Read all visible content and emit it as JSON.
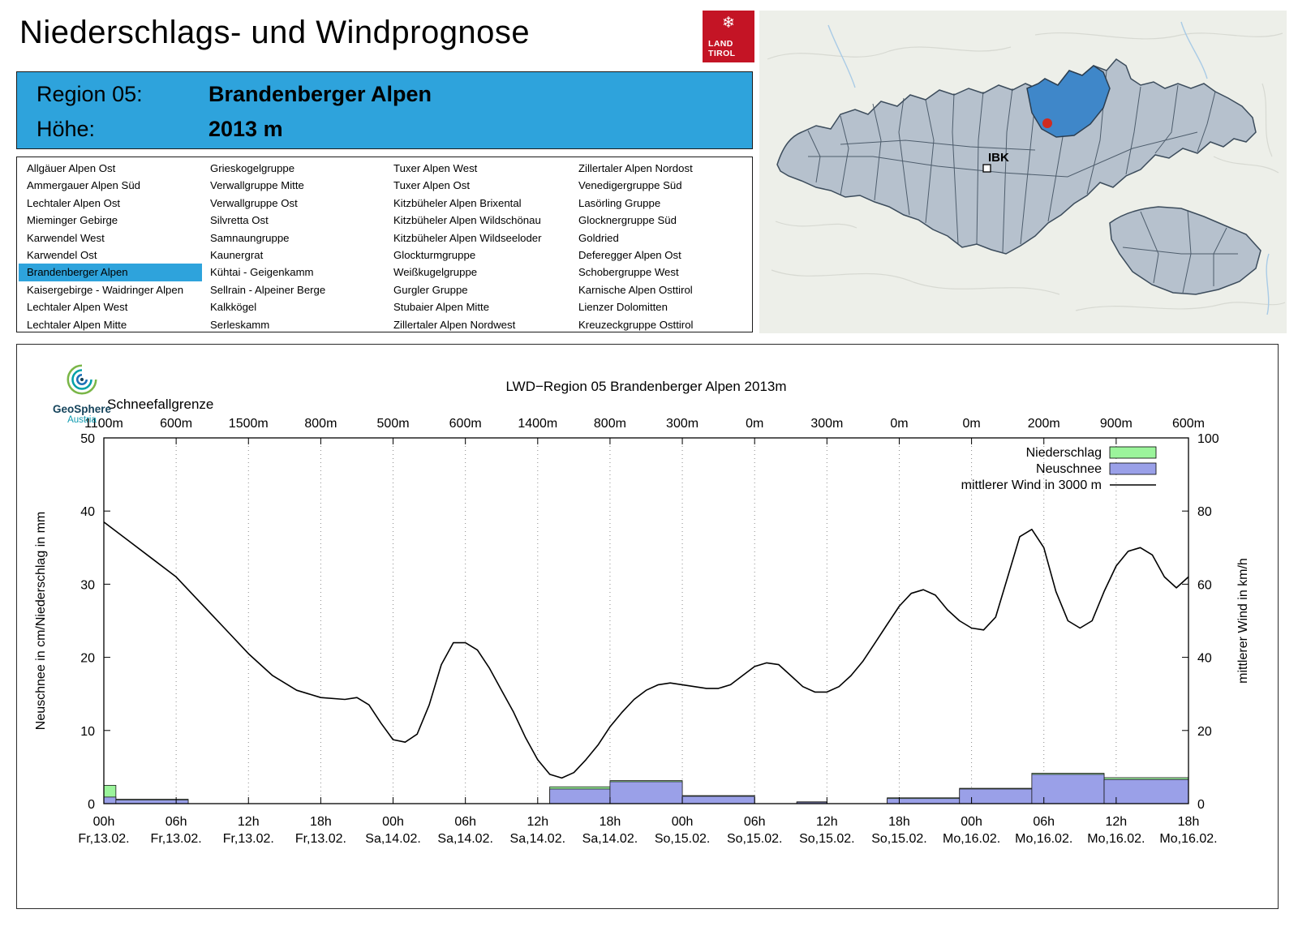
{
  "page": {
    "title": "Niederschlags- und Windprognose"
  },
  "logo": {
    "bg": "#c41425",
    "snowflake": "❄",
    "line1": "LAND",
    "line2": "TIROL"
  },
  "region_box": {
    "bg": "#2ea3dc",
    "rows": [
      {
        "label": "Region 05:",
        "value": "Brandenberger Alpen"
      },
      {
        "label": "Höhe:",
        "value": "2013 m"
      }
    ]
  },
  "region_list": {
    "highlight": "Brandenberger Alpen",
    "highlight_color": "#2ea3dc",
    "columns": [
      [
        "Allgäuer Alpen Ost",
        "Ammergauer Alpen Süd",
        "Lechtaler Alpen Ost",
        "Mieminger Gebirge",
        "Karwendel West",
        "Karwendel Ost",
        "Brandenberger Alpen",
        "Kaisergebirge - Waidringer Alpen",
        "Lechtaler Alpen West",
        "Lechtaler Alpen Mitte"
      ],
      [
        "Grieskogelgruppe",
        "Verwallgruppe Mitte",
        "Verwallgruppe Ost",
        "Silvretta Ost",
        "Samnaungruppe",
        "Kaunergrat",
        "Kühtai - Geigenkamm",
        "Sellrain - Alpeiner Berge",
        "Kalkkögel",
        "Serleskamm"
      ],
      [
        "Tuxer Alpen West",
        "Tuxer Alpen Ost",
        "Kitzbüheler Alpen Brixental",
        "Kitzbüheler Alpen Wildschönau",
        "Kitzbüheler Alpen Wildseeloder",
        "Glockturmgruppe",
        "Weißkugelgruppe",
        "Gurgler Gruppe",
        "Stubaier Alpen Mitte",
        "Zillertaler Alpen Nordwest"
      ],
      [
        "Zillertaler Alpen Nordost",
        "Venedigergruppe Süd",
        "Lasörling Gruppe",
        "Glocknergruppe Süd",
        "Goldried",
        "Deferegger Alpen Ost",
        "Schobergruppe West",
        "Karnische Alpen Osttirol",
        "Lienzer Dolomitten",
        "Kreuzeckgruppe Osttirol"
      ]
    ]
  },
  "map": {
    "ibk_label": "IBK",
    "highlight_color": "#3f87c9",
    "marker_color": "#cf2b20"
  },
  "geosphere": {
    "name": "GeoSphere",
    "sub": "Austria"
  },
  "chart_data": {
    "type": "line+bar",
    "title": "LWD−Region 05 Brandenberger Alpen 2013m",
    "top_axis_label": "Schneefallgrenze",
    "snowline_labels": [
      "1100m",
      "600m",
      "1500m",
      "800m",
      "500m",
      "600m",
      "1400m",
      "800m",
      "300m",
      "0m",
      "300m",
      "0m",
      "0m",
      "200m",
      "900m",
      "600m"
    ],
    "x_ticks_hours": [
      0,
      6,
      12,
      18,
      24,
      30,
      36,
      42,
      48,
      54,
      60,
      66,
      72,
      78,
      84,
      90
    ],
    "x_tick_times": [
      "00h",
      "06h",
      "12h",
      "18h",
      "00h",
      "06h",
      "12h",
      "18h",
      "00h",
      "06h",
      "12h",
      "18h",
      "00h",
      "06h",
      "12h",
      "18h"
    ],
    "x_tick_dates": [
      "Fr,13.02.",
      "Fr,13.02.",
      "Fr,13.02.",
      "Fr,13.02.",
      "Sa,14.02.",
      "Sa,14.02.",
      "Sa,14.02.",
      "Sa,14.02.",
      "So,15.02.",
      "So,15.02.",
      "So,15.02.",
      "So,15.02.",
      "Mo,16.02.",
      "Mo,16.02.",
      "Mo,16.02.",
      "Mo,16.02."
    ],
    "ylabel_left": "Neuschnee in cm/Niederschlag in mm",
    "ylabel_right": "mittlerer Wind in km/h",
    "ylim_left": [
      0,
      50
    ],
    "ylim_right": [
      0,
      100
    ],
    "yticks_left": [
      0,
      10,
      20,
      30,
      40,
      50
    ],
    "yticks_right": [
      0,
      20,
      40,
      60,
      80,
      100
    ],
    "colors": {
      "niederschlag": "#9bf49b",
      "neuschnee": "#9aa0e8",
      "wind": "#000000"
    },
    "legend": [
      {
        "label": "Niederschlag",
        "color": "#9bf49b",
        "type": "box"
      },
      {
        "label": "Neuschnee",
        "color": "#9aa0e8",
        "type": "box"
      },
      {
        "label": "mittlerer Wind in 3000 m",
        "color": "#000000",
        "type": "line"
      }
    ],
    "bars": [
      {
        "start": 0,
        "end": 1,
        "niederschlag": 2.5,
        "neuschnee": 0.9
      },
      {
        "start": 1,
        "end": 7,
        "niederschlag": 0.6,
        "neuschnee": 0.5
      },
      {
        "start": 37,
        "end": 42,
        "niederschlag": 2.3,
        "neuschnee": 2.0
      },
      {
        "start": 42,
        "end": 48,
        "niederschlag": 3.15,
        "neuschnee": 3.0
      },
      {
        "start": 48,
        "end": 54,
        "niederschlag": 1.1,
        "neuschnee": 1.0
      },
      {
        "start": 57.5,
        "end": 60,
        "niederschlag": 0.25,
        "neuschnee": 0.2
      },
      {
        "start": 65,
        "end": 71,
        "niederschlag": 0.8,
        "neuschnee": 0.7
      },
      {
        "start": 71,
        "end": 77,
        "niederschlag": 2.1,
        "neuschnee": 2.0
      },
      {
        "start": 77,
        "end": 83,
        "niederschlag": 4.15,
        "neuschnee": 4.0
      },
      {
        "start": 83,
        "end": 90,
        "niederschlag": 3.55,
        "neuschnee": 3.3
      }
    ],
    "wind_series": {
      "name": "mittlerer Wind in 3000 m",
      "unit": "km/h",
      "points": [
        [
          0,
          77
        ],
        [
          2,
          72
        ],
        [
          4,
          67
        ],
        [
          6,
          62
        ],
        [
          8,
          55
        ],
        [
          10,
          48
        ],
        [
          12,
          41
        ],
        [
          14,
          35
        ],
        [
          16,
          31
        ],
        [
          18,
          29
        ],
        [
          20,
          28.5
        ],
        [
          21,
          29
        ],
        [
          22,
          27
        ],
        [
          23,
          22
        ],
        [
          24,
          17.5
        ],
        [
          25,
          16.8
        ],
        [
          26,
          19
        ],
        [
          27,
          27
        ],
        [
          28,
          38
        ],
        [
          29,
          44
        ],
        [
          30,
          44
        ],
        [
          31,
          42
        ],
        [
          32,
          37
        ],
        [
          33,
          31
        ],
        [
          34,
          25
        ],
        [
          35,
          18
        ],
        [
          36,
          12
        ],
        [
          37,
          8
        ],
        [
          38,
          7
        ],
        [
          39,
          8.5
        ],
        [
          40,
          12
        ],
        [
          41,
          16
        ],
        [
          42,
          21
        ],
        [
          43,
          25
        ],
        [
          44,
          28.5
        ],
        [
          45,
          31
        ],
        [
          46,
          32.5
        ],
        [
          47,
          33
        ],
        [
          48,
          32.5
        ],
        [
          49,
          32
        ],
        [
          50,
          31.5
        ],
        [
          51,
          31.5
        ],
        [
          52,
          32.5
        ],
        [
          53,
          35
        ],
        [
          54,
          37.5
        ],
        [
          55,
          38.5
        ],
        [
          56,
          38
        ],
        [
          57,
          35
        ],
        [
          58,
          32
        ],
        [
          59,
          30.5
        ],
        [
          60,
          30.5
        ],
        [
          61,
          32
        ],
        [
          62,
          35
        ],
        [
          63,
          39
        ],
        [
          64,
          44
        ],
        [
          65,
          49
        ],
        [
          66,
          54
        ],
        [
          67,
          57.5
        ],
        [
          68,
          58.5
        ],
        [
          69,
          57
        ],
        [
          70,
          53
        ],
        [
          71,
          50
        ],
        [
          72,
          48
        ],
        [
          73,
          47.5
        ],
        [
          74,
          51
        ],
        [
          75,
          62
        ],
        [
          76,
          73
        ],
        [
          77,
          75
        ],
        [
          78,
          70
        ],
        [
          79,
          58
        ],
        [
          80,
          50
        ],
        [
          81,
          48
        ],
        [
          82,
          50
        ],
        [
          83,
          58
        ],
        [
          84,
          65
        ],
        [
          85,
          69
        ],
        [
          86,
          70
        ],
        [
          87,
          68
        ],
        [
          88,
          62
        ],
        [
          89,
          59
        ],
        [
          90,
          62
        ]
      ]
    }
  }
}
